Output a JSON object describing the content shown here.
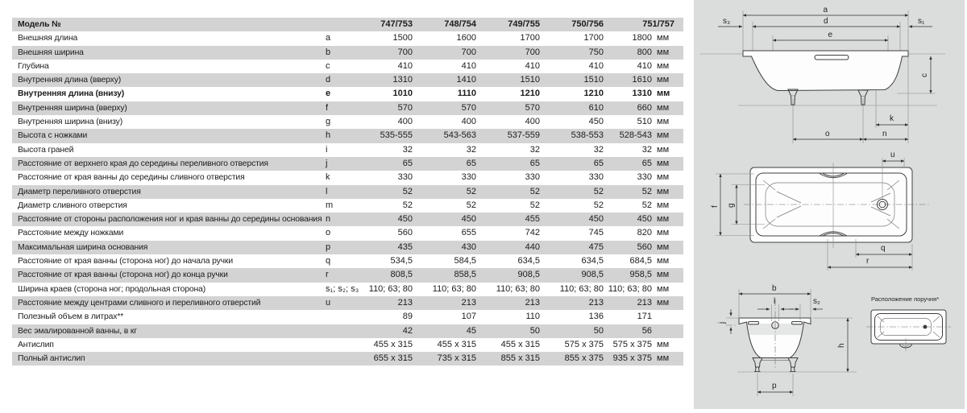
{
  "colors": {
    "row_stripe": "#d3d3d3",
    "panel_bg": "#dbdcdc",
    "text": "#1c1c1c"
  },
  "table": {
    "header": {
      "label": "Модель №",
      "models": [
        "747/753",
        "748/754",
        "749/755",
        "750/756",
        "751/757"
      ]
    },
    "rows": [
      {
        "label": "Внешняя длина",
        "letter": "a",
        "values": [
          "1500",
          "1600",
          "1700",
          "1700",
          "1800"
        ],
        "unit": "мм",
        "bold": false
      },
      {
        "label": "Внешняя ширина",
        "letter": "b",
        "values": [
          "700",
          "700",
          "700",
          "750",
          "800"
        ],
        "unit": "мм",
        "bold": false
      },
      {
        "label": "Глубина",
        "letter": "c",
        "values": [
          "410",
          "410",
          "410",
          "410",
          "410"
        ],
        "unit": "мм",
        "bold": false
      },
      {
        "label": "Внутренняя длина (вверху)",
        "letter": "d",
        "values": [
          "1310",
          "1410",
          "1510",
          "1510",
          "1610"
        ],
        "unit": "мм",
        "bold": false
      },
      {
        "label": "Внутренняя длина (внизу)",
        "letter": "e",
        "values": [
          "1010",
          "1110",
          "1210",
          "1210",
          "1310"
        ],
        "unit": "мм",
        "bold": true
      },
      {
        "label": "Внутренняя ширина (вверху)",
        "letter": "f",
        "values": [
          "570",
          "570",
          "570",
          "610",
          "660"
        ],
        "unit": "мм",
        "bold": false
      },
      {
        "label": "Внутренняя ширина (внизу)",
        "letter": "g",
        "values": [
          "400",
          "400",
          "400",
          "450",
          "510"
        ],
        "unit": "мм",
        "bold": false
      },
      {
        "label": "Высота с ножками",
        "letter": "h",
        "values": [
          "535-555",
          "543-563",
          "537-559",
          "538-553",
          "528-543"
        ],
        "unit": "мм",
        "bold": false
      },
      {
        "label": "Высота граней",
        "letter": "i",
        "values": [
          "32",
          "32",
          "32",
          "32",
          "32"
        ],
        "unit": "мм",
        "bold": false
      },
      {
        "label": "Расстояние от верхнего края до середины переливного отверстия",
        "letter": "j",
        "values": [
          "65",
          "65",
          "65",
          "65",
          "65"
        ],
        "unit": "мм",
        "bold": false
      },
      {
        "label": "Расстояние от края ванны до середины сливного отверстия",
        "letter": "k",
        "values": [
          "330",
          "330",
          "330",
          "330",
          "330"
        ],
        "unit": "мм",
        "bold": false
      },
      {
        "label": "Диаметр переливного отверстия",
        "letter": "l",
        "values": [
          "52",
          "52",
          "52",
          "52",
          "52"
        ],
        "unit": "мм",
        "bold": false
      },
      {
        "label": "Диаметр сливного отверстия",
        "letter": "m",
        "values": [
          "52",
          "52",
          "52",
          "52",
          "52"
        ],
        "unit": "мм",
        "bold": false
      },
      {
        "label": "Расстояние от стороны расположения ног и края ванны до середины основания",
        "letter": "n",
        "values": [
          "450",
          "450",
          "455",
          "450",
          "450"
        ],
        "unit": "мм",
        "bold": false
      },
      {
        "label": "Расстояние между ножками",
        "letter": "o",
        "values": [
          "560",
          "655",
          "742",
          "745",
          "820"
        ],
        "unit": "мм",
        "bold": false
      },
      {
        "label": "Максимальная ширина основания",
        "letter": "p",
        "values": [
          "435",
          "430",
          "440",
          "475",
          "560"
        ],
        "unit": "мм",
        "bold": false
      },
      {
        "label": "Расстояние от края ванны (сторона ног) до начала ручки",
        "letter": "q",
        "values": [
          "534,5",
          "584,5",
          "634,5",
          "634,5",
          "684,5"
        ],
        "unit": "мм",
        "bold": false
      },
      {
        "label": "Расстояние от края ванны (сторона ног) до конца ручки",
        "letter": "r",
        "values": [
          "808,5",
          "858,5",
          "908,5",
          "908,5",
          "958,5"
        ],
        "unit": "мм",
        "bold": false
      },
      {
        "label": "Ширина краев (сторона ног; продольная сторона)",
        "letter": "s₁; s₂; s₃",
        "values": [
          "110; 63; 80",
          "110; 63; 80",
          "110; 63; 80",
          "110; 63; 80",
          "110; 63; 80"
        ],
        "unit": "мм",
        "bold": false
      },
      {
        "label": "Расстояние между центрами сливного и переливного отверстий",
        "letter": "u",
        "values": [
          "213",
          "213",
          "213",
          "213",
          "213"
        ],
        "unit": "мм",
        "bold": false
      },
      {
        "label": "Полезный объем в литрах**",
        "letter": "",
        "values": [
          "89",
          "107",
          "110",
          "136",
          "171"
        ],
        "unit": "",
        "bold": false
      },
      {
        "label": "Вес эмалированной ванны, в кг",
        "letter": "",
        "values": [
          "42",
          "45",
          "50",
          "50",
          "56"
        ],
        "unit": "",
        "bold": false
      },
      {
        "label": "Антислип",
        "letter": "",
        "values": [
          "455 x 315",
          "455 x 315",
          "455 x 315",
          "575 x 375",
          "575 x 375"
        ],
        "unit": "мм",
        "bold": false
      },
      {
        "label": "Полный антислип",
        "letter": "",
        "values": [
          "655 x 315",
          "735 x 315",
          "855 x 315",
          "855 x 375",
          "935 x 375"
        ],
        "unit": "мм",
        "bold": false
      }
    ]
  },
  "dim_labels": {
    "a": "a",
    "b": "b",
    "c": "c",
    "d": "d",
    "e": "e",
    "f": "f",
    "g": "g",
    "h": "h",
    "j": "j",
    "k": "k",
    "l": "l",
    "n": "n",
    "o": "o",
    "p": "p",
    "q": "q",
    "r": "r",
    "u": "u",
    "s1": "s₁",
    "s2": "s₂",
    "s3": "s₃"
  },
  "grip_note": "Расположение поручня*"
}
